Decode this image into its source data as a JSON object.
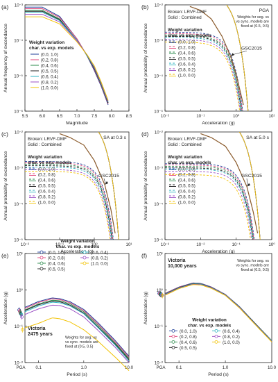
{
  "colors": [
    "#1f3f99",
    "#e0457b",
    "#2a8a4a",
    "#222222",
    "#2bb3c0",
    "#9b4fc4",
    "#f2c200"
  ],
  "chart_data": [
    {
      "panel": "(a)",
      "type": "line",
      "xlabel": "Magnitude",
      "ylabel": "Annual frequency of exceedance",
      "xlim": [
        5.5,
        8.5
      ],
      "ylim": [
        1e-06,
        0.001
      ],
      "yscale": "log",
      "xticks": [
        "5.5",
        "6.0",
        "6.5",
        "7.0",
        "7.5",
        "8.0",
        "8.5"
      ],
      "yticks": [
        "10⁻⁶",
        "10⁻⁵",
        "10⁻⁴",
        "10⁻³"
      ],
      "legend_title": [
        "Weight variation",
        "char. vs exp. models"
      ],
      "legend_style": "solid",
      "series": [
        {
          "name": "(0.0, 1.0)",
          "x": [
            5.5,
            6.0,
            6.5,
            7.0,
            7.3,
            7.5,
            7.7,
            7.9
          ],
          "y": [
            0.00086,
            0.00086,
            0.00047,
            0.00011,
            3.5e-05,
            1.4e-05,
            5e-06,
            1.5e-06
          ]
        },
        {
          "name": "(0.2, 0.8)",
          "x": [
            5.5,
            6.0,
            6.5,
            7.0,
            7.3,
            7.5,
            7.7,
            7.9
          ],
          "y": [
            0.00078,
            0.00078,
            0.00044,
            0.00011,
            3.6e-05,
            1.5e-05,
            5.3e-06,
            1.6e-06
          ]
        },
        {
          "name": "(0.4, 0.6)",
          "x": [
            5.5,
            6.0,
            6.5,
            7.0,
            7.3,
            7.5,
            7.7,
            7.9
          ],
          "y": [
            0.0007,
            0.0007,
            0.0004,
            0.0001,
            3.6e-05,
            1.6e-05,
            5.6e-06,
            1.7e-06
          ]
        },
        {
          "name": "(0.5, 0.5)",
          "x": [
            5.5,
            6.0,
            6.5,
            7.0,
            7.3,
            7.5,
            7.7,
            7.9
          ],
          "y": [
            0.00066,
            0.00066,
            0.00038,
            0.0001,
            3.7e-05,
            1.6e-05,
            5.8e-06,
            1.7e-06
          ]
        },
        {
          "name": "(0.6, 0.4)",
          "x": [
            5.5,
            6.0,
            6.5,
            7.0,
            7.3,
            7.5,
            7.7,
            7.9
          ],
          "y": [
            0.00062,
            0.00062,
            0.00036,
            0.0001,
            3.7e-05,
            1.7e-05,
            6e-06,
            1.8e-06
          ]
        },
        {
          "name": "(0.8, 0.2)",
          "x": [
            5.5,
            6.0,
            6.5,
            7.0,
            7.3,
            7.5,
            7.7,
            7.9
          ],
          "y": [
            0.00054,
            0.00054,
            0.00033,
            9.6e-05,
            3.8e-05,
            1.8e-05,
            6.3e-06,
            1.9e-06
          ]
        },
        {
          "name": "(1.0, 0.0)",
          "x": [
            5.5,
            6.0,
            6.5,
            7.0,
            7.3,
            7.5,
            7.7,
            7.9
          ],
          "y": [
            0.00046,
            0.00046,
            0.00029,
            9e-05,
            3.8e-05,
            1.9e-05,
            6.6e-06,
            2e-06
          ]
        }
      ]
    },
    {
      "panel": "(b)",
      "type": "line",
      "xlabel": "Acceleration (g)",
      "ylabel": "Annual probability of exceedance",
      "xlim": [
        0.01,
        10
      ],
      "ylim": [
        1e-05,
        0.01
      ],
      "xscale": "log",
      "yscale": "log",
      "xticks": [
        "10⁻²",
        "10⁻¹",
        "10⁰",
        "10¹"
      ],
      "yticks": [
        "10⁻⁵",
        "10⁻⁴",
        "10⁻³",
        "10⁻²"
      ],
      "title": "PGA",
      "note": [
        "Weights for seg. vs",
        "vs sync. models are",
        "fixed at (0.5, 0.5)"
      ],
      "style_note": [
        "Broken: LRVF-DMF",
        "Solid   : Combined"
      ],
      "annotation": "GSC2015",
      "legend_title": [
        "Weight variation",
        "char. vs exp. models"
      ],
      "legend_style": "both",
      "gsc2015": {
        "x": [
          0.05,
          0.1,
          0.2,
          0.4,
          0.7,
          1.0,
          1.6
        ],
        "y": [
          0.009,
          0.007,
          0.004,
          0.0013,
          0.00035,
          0.00011,
          1.5e-05
        ]
      },
      "series": [
        {
          "name": "(0.0, 1.0)",
          "broken_start": 0.0017,
          "broken_scale": 0.55,
          "solid_start": 0.023,
          "solid_scale": 0.6
        },
        {
          "name": "(0.2, 0.8)",
          "broken_start": 0.00155,
          "broken_scale": 0.54,
          "solid_start": 0.023,
          "solid_scale": 0.6
        },
        {
          "name": "(0.4, 0.6)",
          "broken_start": 0.0014,
          "broken_scale": 0.53,
          "solid_start": 0.023,
          "solid_scale": 0.6
        },
        {
          "name": "(0.5, 0.5)",
          "broken_start": 0.0013,
          "broken_scale": 0.52,
          "solid_start": 0.023,
          "solid_scale": 0.6
        },
        {
          "name": "(0.6, 0.4)",
          "broken_start": 0.0012,
          "broken_scale": 0.51,
          "solid_start": 0.023,
          "solid_scale": 0.6
        },
        {
          "name": "(0.8, 0.2)",
          "broken_start": 0.00105,
          "broken_scale": 0.5,
          "solid_start": 0.023,
          "solid_scale": 0.6
        },
        {
          "name": "(1.0, 0.0)",
          "broken_start": 0.0009,
          "broken_scale": 0.49,
          "solid_start": 0.023,
          "solid_scale": 0.6
        }
      ]
    },
    {
      "panel": "(c)",
      "type": "line",
      "xlabel": "Acceleration (g)",
      "ylabel": "Annual probability of exceedance",
      "xlim": [
        0.01,
        10
      ],
      "ylim": [
        1e-05,
        0.01
      ],
      "xscale": "log",
      "yscale": "log",
      "xticks": [
        "10⁻²",
        "10⁻¹",
        "10⁰",
        "10¹"
      ],
      "yticks": [
        "10⁻⁵",
        "10⁻⁴",
        "10⁻³",
        "10⁻²"
      ],
      "title": "SA at 0.3 s",
      "style_note": [
        "Broken: LRVF-DMF",
        "Solid   : Combined"
      ],
      "annotation": "GSC2015",
      "legend_title": [
        "Weight variation",
        "char. vs exp. models"
      ],
      "legend_style": "both",
      "gsc2015": {
        "x": [
          0.1,
          0.2,
          0.5,
          1.0,
          2.0,
          3.0,
          4.0
        ],
        "y": [
          0.009,
          0.007,
          0.0043,
          0.0016,
          0.00034,
          7e-05,
          1.5e-05
        ]
      },
      "series": [
        {
          "name": "(0.0, 1.0)",
          "broken_start": 0.0015,
          "broken_scale": 1.3,
          "solid_start": 0.025,
          "solid_scale": 1.4
        },
        {
          "name": "(0.2, 0.8)",
          "broken_start": 0.00138,
          "broken_scale": 1.27,
          "solid_start": 0.025,
          "solid_scale": 1.4
        },
        {
          "name": "(0.4, 0.6)",
          "broken_start": 0.00125,
          "broken_scale": 1.24,
          "solid_start": 0.025,
          "solid_scale": 1.4
        },
        {
          "name": "(0.5, 0.5)",
          "broken_start": 0.00115,
          "broken_scale": 1.22,
          "solid_start": 0.025,
          "solid_scale": 1.4
        },
        {
          "name": "(0.6, 0.4)",
          "broken_start": 0.00105,
          "broken_scale": 1.2,
          "solid_start": 0.025,
          "solid_scale": 1.4
        },
        {
          "name": "(0.8, 0.2)",
          "broken_start": 0.0009,
          "broken_scale": 1.17,
          "solid_start": 0.025,
          "solid_scale": 1.4
        },
        {
          "name": "(1.0, 0.0)",
          "broken_start": 0.0008,
          "broken_scale": 1.14,
          "solid_start": 0.025,
          "solid_scale": 1.4
        }
      ]
    },
    {
      "panel": "(d)",
      "type": "line",
      "xlabel": "Acceleration (g)",
      "ylabel": "Annual probability of exceedance",
      "xlim": [
        0.001,
        1
      ],
      "ylim": [
        1e-05,
        0.01
      ],
      "xscale": "log",
      "yscale": "log",
      "xticks": [
        "10⁻³",
        "10⁻²",
        "10⁻¹",
        "10⁰"
      ],
      "yticks": [
        "10⁻⁵",
        "10⁻⁴",
        "10⁻³",
        "10⁻²"
      ],
      "title": "SA at 5.0 s",
      "style_note": [
        "Broken: LRVF-DMF",
        "Solid   : Combined"
      ],
      "annotation": "GSC2015",
      "legend_title": [
        "Weight variation",
        "char. vs exp. models"
      ],
      "legend_style": "both",
      "gsc2015": {
        "x": [
          0.01,
          0.02,
          0.05,
          0.1,
          0.2,
          0.3,
          0.4
        ],
        "y": [
          0.009,
          0.007,
          0.004,
          0.0014,
          0.0003,
          6e-05,
          1.5e-05
        ]
      },
      "series": [
        {
          "name": "(0.0, 1.0)",
          "broken_start": 0.0013,
          "broken_scale": 0.12,
          "solid_start": 0.025,
          "solid_scale": 0.13
        },
        {
          "name": "(0.2, 0.8)",
          "broken_start": 0.0012,
          "broken_scale": 0.118,
          "solid_start": 0.025,
          "solid_scale": 0.13
        },
        {
          "name": "(0.4, 0.6)",
          "broken_start": 0.0011,
          "broken_scale": 0.116,
          "solid_start": 0.025,
          "solid_scale": 0.13
        },
        {
          "name": "(0.5, 0.5)",
          "broken_start": 0.001,
          "broken_scale": 0.114,
          "solid_start": 0.025,
          "solid_scale": 0.13
        },
        {
          "name": "(0.6, 0.4)",
          "broken_start": 0.00093,
          "broken_scale": 0.112,
          "solid_start": 0.025,
          "solid_scale": 0.13
        },
        {
          "name": "(0.8, 0.2)",
          "broken_start": 0.0008,
          "broken_scale": 0.108,
          "solid_start": 0.025,
          "solid_scale": 0.13
        },
        {
          "name": "(1.0, 0.0)",
          "broken_start": 0.00065,
          "broken_scale": 0.104,
          "solid_start": 0.025,
          "solid_scale": 0.13
        }
      ]
    },
    {
      "panel": "(e)",
      "type": "line",
      "xlabel": "Period (s)",
      "ylabel": "Acceleration (g)",
      "xlim": [
        0.05,
        10
      ],
      "ylim": [
        0.01,
        10
      ],
      "xscale": "log",
      "yscale": "log",
      "xticks": [
        "0.1",
        "1.0",
        "10.0"
      ],
      "yticks": [
        "10⁻²",
        "10⁻¹",
        "10⁰",
        "10¹"
      ],
      "pga_tick": "PGA",
      "site": [
        "Victoria",
        "2475 years"
      ],
      "note": [
        "Weights for seg. vs",
        "vs sync. models are",
        "fixed at (0.5, 0.5)"
      ],
      "legend_title": [
        "Weight variation",
        "char. vs exp. models"
      ],
      "legend_style": "markers",
      "periods": [
        0.05,
        0.1,
        0.2,
        0.3,
        0.5,
        1.0,
        2.0,
        5.0,
        10.0
      ],
      "series": [
        {
          "name": "(0.0, 1.0)",
          "pga": 0.28,
          "values": [
            0.33,
            0.48,
            0.6,
            0.57,
            0.47,
            0.29,
            0.13,
            0.04,
            0.015
          ]
        },
        {
          "name": "(0.2, 0.8)",
          "pga": 0.26,
          "values": [
            0.31,
            0.45,
            0.57,
            0.54,
            0.44,
            0.27,
            0.12,
            0.037,
            0.014
          ]
        },
        {
          "name": "(0.4, 0.6)",
          "pga": 0.24,
          "values": [
            0.28,
            0.41,
            0.52,
            0.5,
            0.41,
            0.25,
            0.11,
            0.034,
            0.013
          ]
        },
        {
          "name": "(0.5, 0.5)",
          "pga": 0.22,
          "values": [
            0.27,
            0.39,
            0.49,
            0.47,
            0.38,
            0.23,
            0.1,
            0.032,
            0.012
          ]
        },
        {
          "name": "(0.6, 0.4)",
          "pga": 0.21,
          "values": [
            0.25,
            0.36,
            0.46,
            0.44,
            0.36,
            0.22,
            0.095,
            0.03,
            0.011
          ]
        },
        {
          "name": "(0.8, 0.2)",
          "pga": 0.18,
          "values": [
            0.21,
            0.3,
            0.38,
            0.37,
            0.3,
            0.18,
            0.08,
            0.026,
            0.01
          ]
        },
        {
          "name": "(1.0, 0.0)",
          "pga": 0.08,
          "values": [
            0.09,
            0.12,
            0.17,
            0.16,
            0.13,
            0.08,
            0.04,
            0.014,
            0.006
          ]
        }
      ]
    },
    {
      "panel": "(f)",
      "type": "line",
      "xlabel": "Period (s)",
      "ylabel": "Acceleration (g)",
      "xlim": [
        0.05,
        10
      ],
      "ylim": [
        0.01,
        10
      ],
      "xscale": "log",
      "yscale": "log",
      "xticks": [
        "0.1",
        "1.0",
        "10.0"
      ],
      "yticks": [
        "10⁻²",
        "10⁻¹",
        "10⁰",
        "10¹"
      ],
      "pga_tick": "PGA",
      "site": [
        "Victoria",
        "10,000 years"
      ],
      "note": [
        "Weights for seg. vs",
        "vs sync. models are",
        "fixed at (0.5, 0.5)"
      ],
      "legend_title": [
        "Weight variation",
        "char. vs exp. models"
      ],
      "legend_style": "markers",
      "periods": [
        0.05,
        0.1,
        0.2,
        0.3,
        0.5,
        1.0,
        2.0,
        5.0,
        10.0
      ],
      "series": [
        {
          "name": "(0.0, 1.0)",
          "pga": 0.8,
          "values": [
            0.8,
            1.2,
            1.55,
            1.5,
            1.2,
            0.75,
            0.35,
            0.1,
            0.04
          ]
        },
        {
          "name": "(0.2, 0.8)",
          "pga": 0.78,
          "values": [
            0.79,
            1.18,
            1.52,
            1.47,
            1.18,
            0.74,
            0.34,
            0.1,
            0.04
          ]
        },
        {
          "name": "(0.4, 0.6)",
          "pga": 0.76,
          "values": [
            0.77,
            1.15,
            1.5,
            1.45,
            1.16,
            0.73,
            0.34,
            0.1,
            0.04
          ]
        },
        {
          "name": "(0.5, 0.5)",
          "pga": 0.75,
          "values": [
            0.76,
            1.14,
            1.48,
            1.43,
            1.15,
            0.72,
            0.33,
            0.1,
            0.039
          ]
        },
        {
          "name": "(0.6, 0.4)",
          "pga": 0.74,
          "values": [
            0.75,
            1.12,
            1.46,
            1.42,
            1.14,
            0.72,
            0.33,
            0.097,
            0.039
          ]
        },
        {
          "name": "(0.8, 0.2)",
          "pga": 0.72,
          "values": [
            0.73,
            1.1,
            1.43,
            1.39,
            1.12,
            0.71,
            0.33,
            0.095,
            0.038
          ]
        },
        {
          "name": "(1.0, 0.0)",
          "pga": 0.7,
          "values": [
            0.71,
            1.08,
            1.4,
            1.36,
            1.1,
            0.7,
            0.32,
            0.093,
            0.037
          ]
        }
      ]
    }
  ]
}
